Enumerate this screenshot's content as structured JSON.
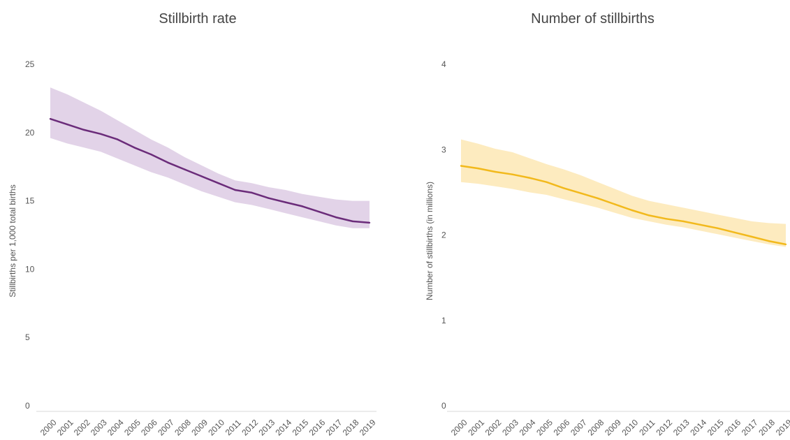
{
  "chart_data": [
    {
      "type": "line",
      "title": "Stillbirth rate",
      "xlabel": "",
      "ylabel": "Stillbirths per 1,000 total births",
      "ylim": [
        0,
        25
      ],
      "yticks": [
        "0",
        "5",
        "10",
        "15",
        "20",
        "25"
      ],
      "x": [
        "2000",
        "2001",
        "2002",
        "2003",
        "2004",
        "2005",
        "2006",
        "2007",
        "2008",
        "2009",
        "2010",
        "2011",
        "2012",
        "2013",
        "2014",
        "2015",
        "2016",
        "2017",
        "2018",
        "2019"
      ],
      "series": [
        {
          "values": [
            21.0,
            20.6,
            20.2,
            19.9,
            19.5,
            18.9,
            18.4,
            17.8,
            17.3,
            16.8,
            16.3,
            15.8,
            15.6,
            15.2,
            14.9,
            14.6,
            14.2,
            13.8,
            13.5,
            13.4
          ],
          "lower": [
            19.6,
            19.2,
            18.9,
            18.6,
            18.1,
            17.6,
            17.1,
            16.7,
            16.2,
            15.7,
            15.3,
            14.9,
            14.7,
            14.4,
            14.1,
            13.8,
            13.5,
            13.2,
            13.0,
            13.0
          ],
          "upper": [
            23.3,
            22.8,
            22.2,
            21.6,
            20.9,
            20.2,
            19.5,
            18.9,
            18.2,
            17.6,
            17.0,
            16.5,
            16.3,
            16.0,
            15.8,
            15.5,
            15.3,
            15.1,
            15.0,
            15.0
          ],
          "color": "#6b2c7a",
          "band_color": "#e2d3e8"
        }
      ]
    },
    {
      "type": "line",
      "title": "Number of stillbirths",
      "xlabel": "",
      "ylabel": "Number of stillbirths (in millions)",
      "ylim": [
        0,
        4
      ],
      "yticks": [
        "0",
        "1",
        "2",
        "3",
        "4"
      ],
      "x": [
        "2000",
        "2001",
        "2002",
        "2003",
        "2004",
        "2005",
        "2006",
        "2007",
        "2008",
        "2009",
        "2010",
        "2011",
        "2012",
        "2013",
        "2014",
        "2015",
        "2016",
        "2017",
        "2018",
        "2019"
      ],
      "series": [
        {
          "values": [
            2.81,
            2.78,
            2.74,
            2.71,
            2.67,
            2.62,
            2.55,
            2.49,
            2.43,
            2.36,
            2.29,
            2.23,
            2.19,
            2.16,
            2.12,
            2.08,
            2.03,
            1.98,
            1.93,
            1.89
          ],
          "lower": [
            2.62,
            2.6,
            2.57,
            2.54,
            2.5,
            2.47,
            2.42,
            2.37,
            2.32,
            2.26,
            2.2,
            2.16,
            2.12,
            2.09,
            2.05,
            2.01,
            1.97,
            1.93,
            1.89,
            1.86
          ],
          "upper": [
            3.12,
            3.07,
            3.01,
            2.97,
            2.9,
            2.83,
            2.77,
            2.7,
            2.62,
            2.54,
            2.46,
            2.4,
            2.36,
            2.32,
            2.28,
            2.24,
            2.2,
            2.16,
            2.14,
            2.13
          ],
          "color": "#f2b91c",
          "band_color": "#fdebbf"
        }
      ]
    }
  ]
}
